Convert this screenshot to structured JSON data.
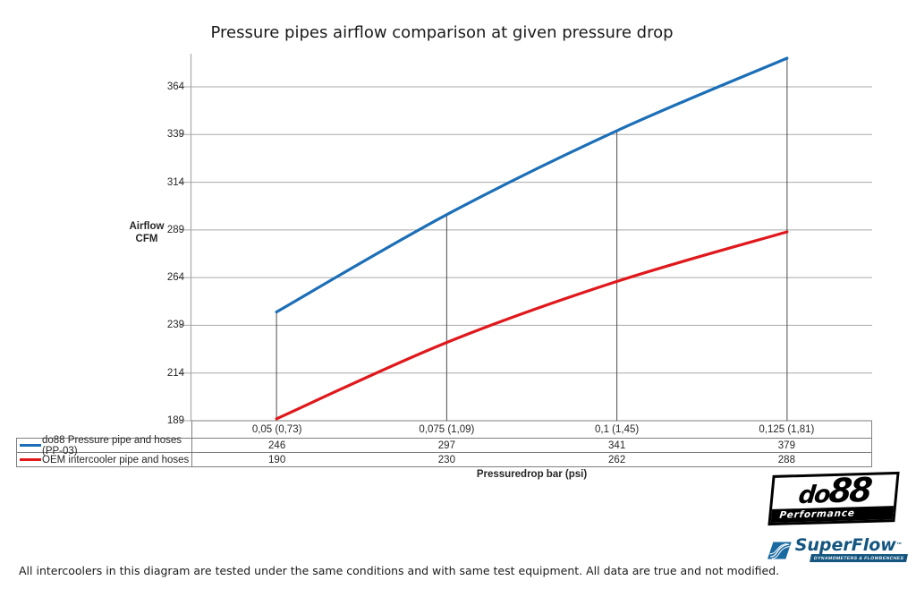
{
  "title": "Pressure pipes airflow comparison at given pressure drop",
  "chart_data": {
    "type": "line",
    "title": "Pressure pipes airflow comparison at given pressure drop",
    "xlabel": "Pressuredrop bar (psi)",
    "ylabel_lines": [
      "Airflow",
      "CFM"
    ],
    "categories": [
      "0,05 (0,73)",
      "0,075 (1,09)",
      "0,1 (1,45)",
      "0,125 (1,81)"
    ],
    "series": [
      {
        "name": "do88 Pressure pipe and hoses (PP-03)",
        "color": "#1c6fb7",
        "values": [
          246,
          297,
          341,
          379
        ]
      },
      {
        "name": "OEM intercooler pipe and hoses",
        "color": "#e0181c",
        "values": [
          190,
          230,
          262,
          288
        ]
      }
    ],
    "yticks": [
      189,
      214,
      239,
      264,
      289,
      314,
      339,
      364
    ],
    "ylim": [
      189,
      382
    ],
    "grid": true,
    "legend_position": "table-left",
    "gridline_color": "#a9a9a9",
    "axis_color": "#a9a9a9",
    "dropline_color": "#4d4d4d",
    "table_border_color": "#7f7f7f"
  },
  "footer_note": "All intercoolers in this diagram are tested under the same conditions and with same test equipment. All data are true and not modified.",
  "logos": {
    "do88": {
      "text": "do",
      "number": "88",
      "subtitle": "Performance"
    },
    "superflow": {
      "text": "SuperFlow",
      "tm": "™",
      "subtitle": "DYNAMOMETERS & FLOWBENCHES"
    }
  }
}
